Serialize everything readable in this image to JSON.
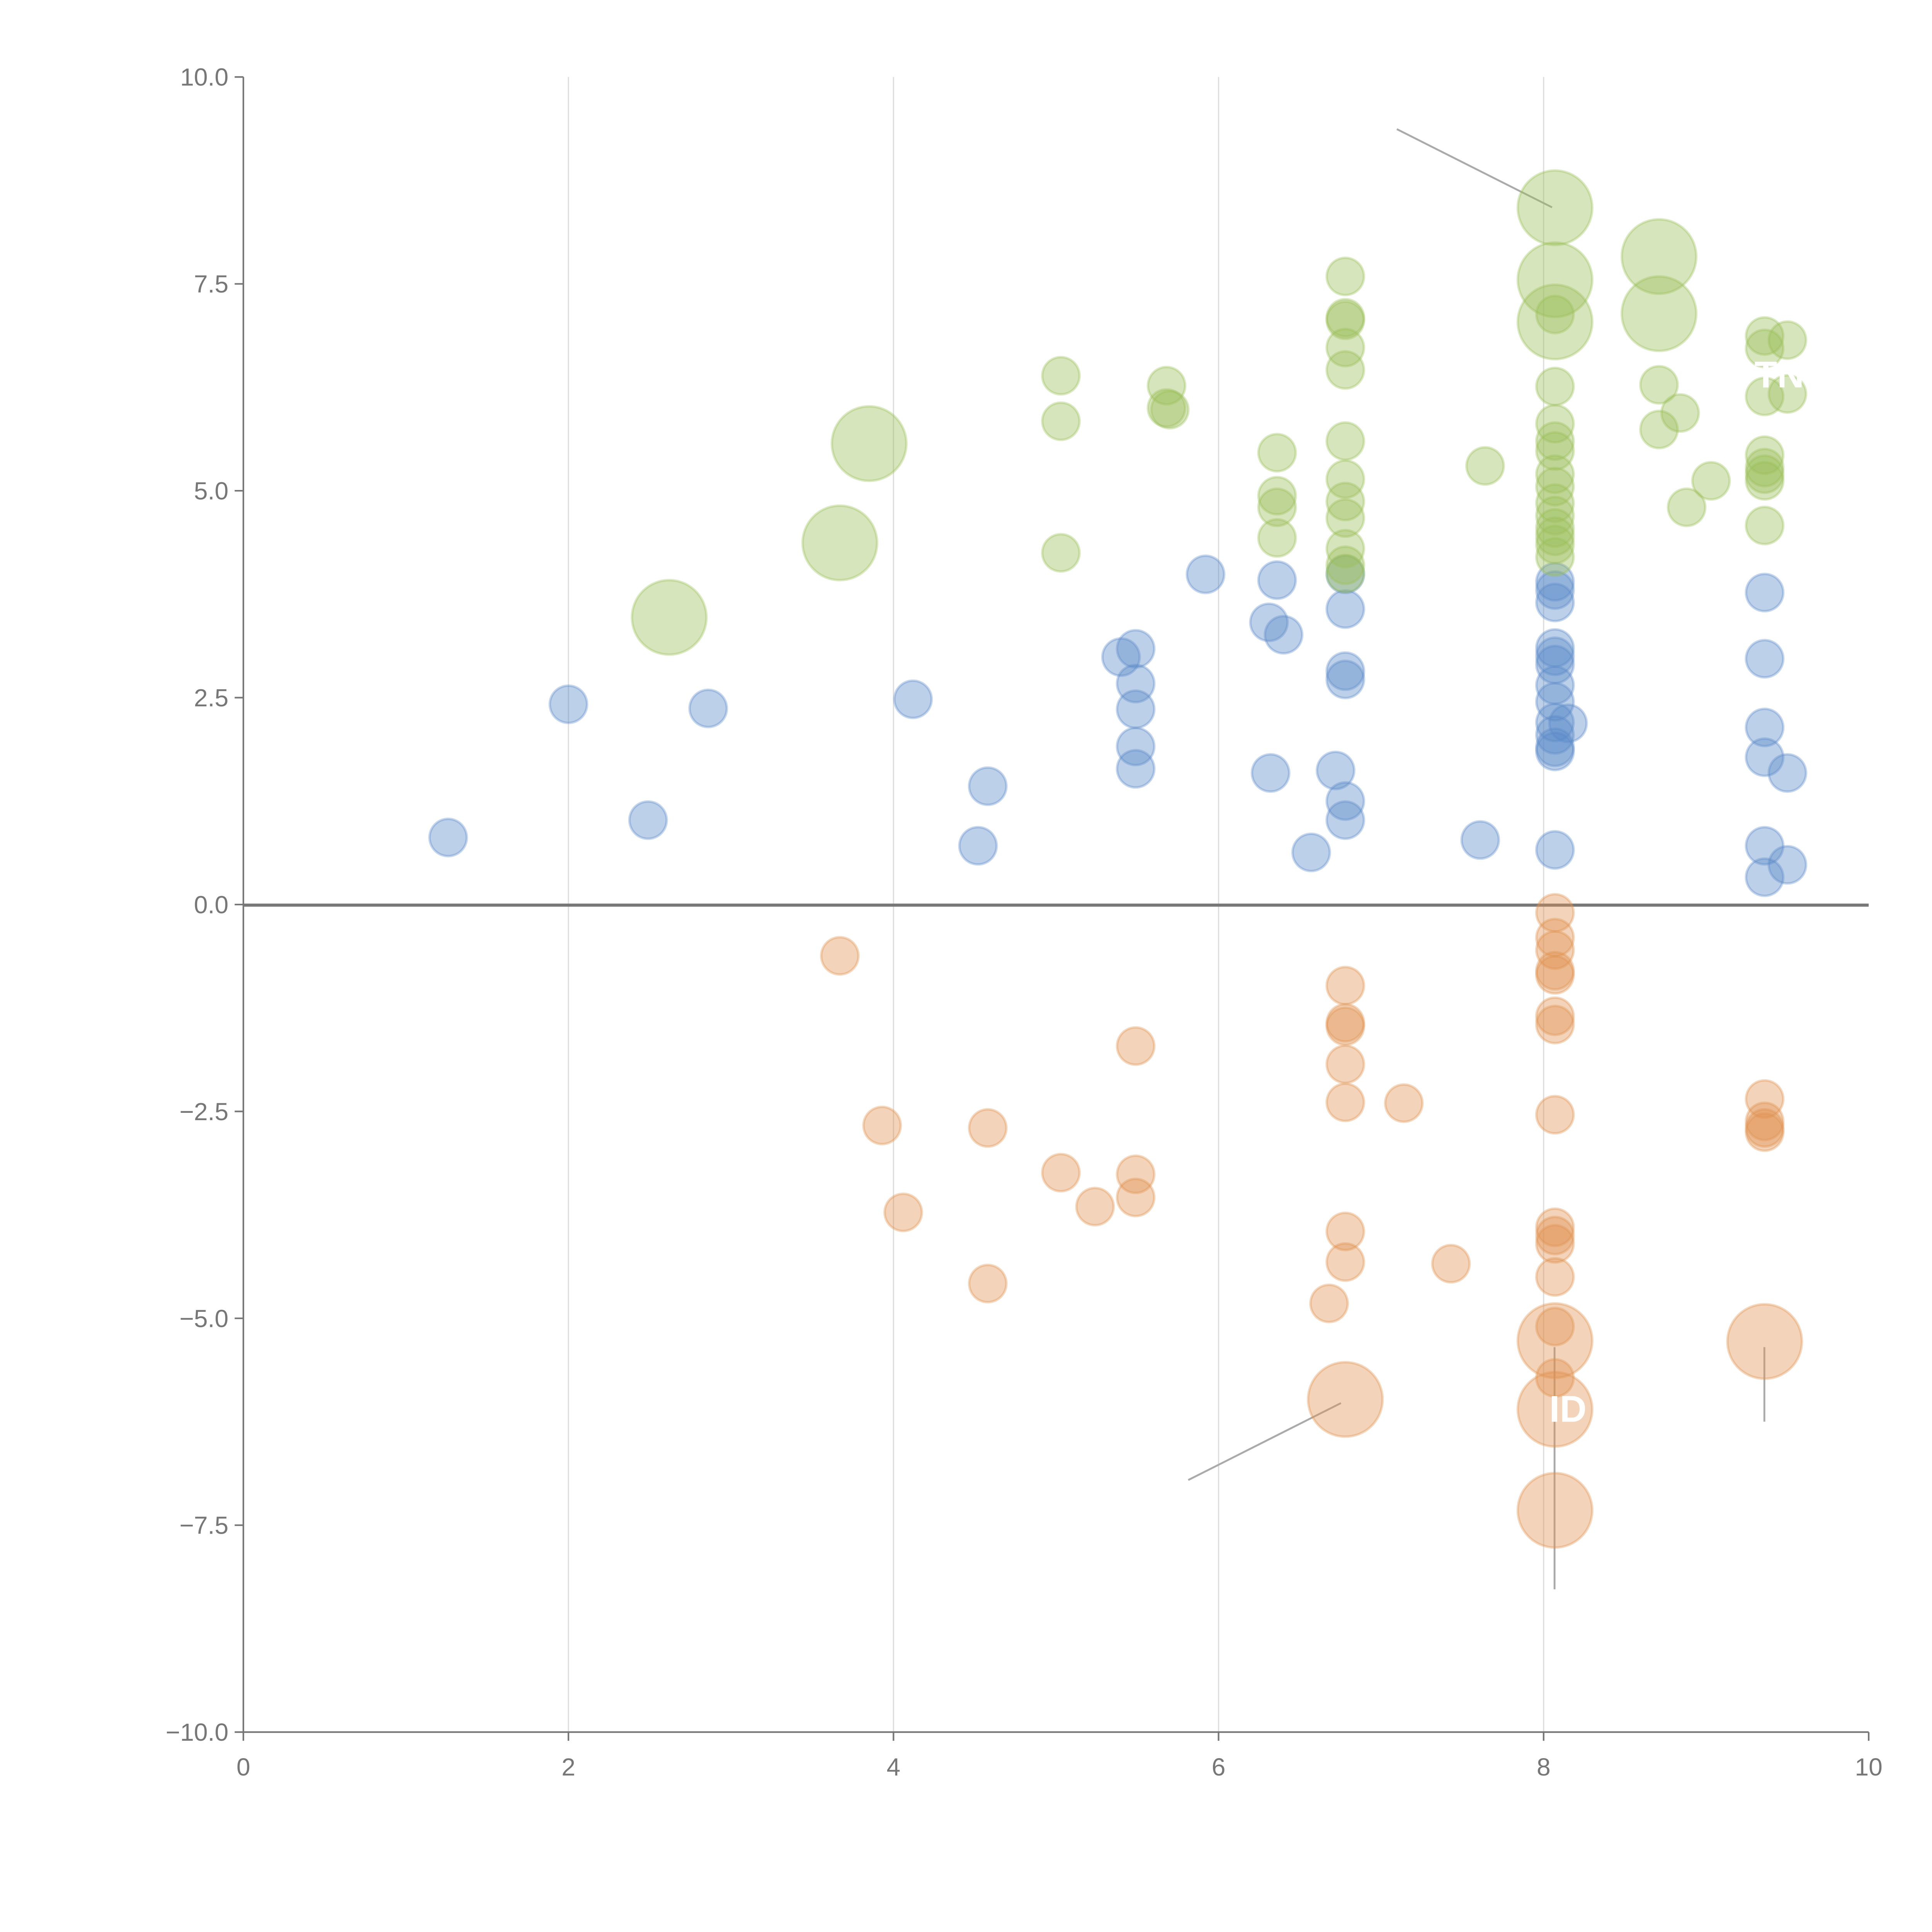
{
  "chart_data": {
    "type": "scatter",
    "title": "",
    "xlabel": "",
    "ylabel": "",
    "xlim": [
      0,
      10
    ],
    "ylim": [
      -10,
      10
    ],
    "xticks": [
      "0",
      "2",
      "4",
      "6",
      "8",
      "10"
    ],
    "yticks": [
      "10.0",
      "7.5",
      "5.0",
      "2.5",
      "0.0",
      "−2.5",
      "−5.0",
      "−7.5",
      "−10.0"
    ],
    "grid": "vertical",
    "series": [
      {
        "name": "blue",
        "color": "#5b8ac9",
        "points": [
          [
            1.26,
            0.81,
            1
          ],
          [
            2.0,
            2.42,
            1
          ],
          [
            2.49,
            1.02,
            1
          ],
          [
            2.86,
            2.37,
            1
          ],
          [
            4.12,
            2.48,
            1
          ],
          [
            4.52,
            0.71,
            1
          ],
          [
            4.58,
            1.43,
            1
          ],
          [
            5.4,
            2.99,
            1
          ],
          [
            5.49,
            3.09,
            1
          ],
          [
            5.49,
            2.67,
            1
          ],
          [
            5.49,
            2.36,
            1
          ],
          [
            5.49,
            1.91,
            1
          ],
          [
            5.49,
            1.64,
            1
          ],
          [
            5.92,
            3.99,
            1
          ],
          [
            6.31,
            3.41,
            1
          ],
          [
            6.36,
            3.92,
            1
          ],
          [
            6.4,
            3.26,
            1
          ],
          [
            6.32,
            1.59,
            1
          ],
          [
            6.57,
            0.63,
            1
          ],
          [
            6.72,
            1.62,
            1
          ],
          [
            6.78,
            1.25,
            1
          ],
          [
            6.78,
            1.02,
            1
          ],
          [
            6.78,
            3.99,
            1
          ],
          [
            6.78,
            3.57,
            1
          ],
          [
            6.78,
            2.82,
            1
          ],
          [
            6.78,
            2.72,
            1
          ],
          [
            7.61,
            0.78,
            1
          ],
          [
            8.07,
            0.66,
            1
          ],
          [
            8.07,
            3.9,
            1
          ],
          [
            8.07,
            3.8,
            1
          ],
          [
            8.07,
            3.65,
            1
          ],
          [
            8.07,
            3.1,
            1
          ],
          [
            8.07,
            3.0,
            1
          ],
          [
            8.07,
            2.9,
            1
          ],
          [
            8.07,
            2.65,
            1
          ],
          [
            8.07,
            2.45,
            1
          ],
          [
            8.07,
            2.2,
            1
          ],
          [
            8.07,
            2.05,
            1
          ],
          [
            8.07,
            1.9,
            1
          ],
          [
            8.07,
            1.85,
            1
          ],
          [
            8.15,
            2.19,
            1
          ],
          [
            9.36,
            3.77,
            1
          ],
          [
            9.36,
            2.97,
            1
          ],
          [
            9.36,
            2.14,
            1
          ],
          [
            9.36,
            1.78,
            1
          ],
          [
            9.36,
            0.71,
            1
          ],
          [
            9.36,
            0.33,
            1
          ],
          [
            9.5,
            1.59,
            1
          ],
          [
            9.5,
            0.48,
            1
          ]
        ]
      },
      {
        "name": "green",
        "color": "#9bbf5a",
        "points": [
          [
            2.62,
            3.47,
            4
          ],
          [
            3.67,
            4.37,
            4
          ],
          [
            3.85,
            5.57,
            4
          ],
          [
            5.03,
            6.39,
            1
          ],
          [
            5.03,
            5.84,
            1
          ],
          [
            5.03,
            4.25,
            1
          ],
          [
            5.68,
            6.27,
            1
          ],
          [
            5.68,
            6.0,
            1
          ],
          [
            5.7,
            5.98,
            1
          ],
          [
            6.36,
            5.46,
            1
          ],
          [
            6.36,
            4.94,
            1
          ],
          [
            6.36,
            4.8,
            1
          ],
          [
            6.36,
            4.43,
            1
          ],
          [
            6.78,
            7.59,
            1
          ],
          [
            6.78,
            7.09,
            1
          ],
          [
            6.78,
            7.06,
            1
          ],
          [
            6.78,
            6.73,
            1
          ],
          [
            6.78,
            6.46,
            1
          ],
          [
            6.78,
            5.6,
            1
          ],
          [
            6.78,
            5.14,
            1
          ],
          [
            6.78,
            4.87,
            1
          ],
          [
            6.78,
            4.67,
            1
          ],
          [
            6.78,
            4.3,
            1
          ],
          [
            6.78,
            4.1,
            1
          ],
          [
            6.78,
            4.0,
            1
          ],
          [
            7.64,
            5.3,
            1
          ],
          [
            8.07,
            8.42,
            4
          ],
          [
            8.07,
            7.55,
            4
          ],
          [
            8.07,
            7.04,
            4
          ],
          [
            8.07,
            7.13,
            1
          ],
          [
            8.07,
            6.26,
            1
          ],
          [
            8.07,
            5.81,
            1
          ],
          [
            8.07,
            5.6,
            1
          ],
          [
            8.07,
            5.48,
            1
          ],
          [
            8.07,
            5.2,
            1
          ],
          [
            8.07,
            5.05,
            1
          ],
          [
            8.07,
            4.85,
            1
          ],
          [
            8.07,
            4.7,
            1
          ],
          [
            8.07,
            4.55,
            1
          ],
          [
            8.07,
            4.45,
            1
          ],
          [
            8.07,
            4.35,
            1
          ],
          [
            8.07,
            4.2,
            1
          ],
          [
            8.71,
            7.83,
            4
          ],
          [
            8.71,
            7.14,
            4
          ],
          [
            8.71,
            6.28,
            1
          ],
          [
            8.71,
            5.74,
            1
          ],
          [
            8.84,
            5.94,
            1
          ],
          [
            8.88,
            4.8,
            1
          ],
          [
            9.03,
            5.12,
            1
          ],
          [
            9.36,
            6.87,
            1
          ],
          [
            9.36,
            6.72,
            1
          ],
          [
            9.36,
            6.14,
            1
          ],
          [
            9.36,
            5.43,
            1
          ],
          [
            9.36,
            5.28,
            1
          ],
          [
            9.36,
            5.2,
            1
          ],
          [
            9.36,
            5.12,
            1
          ],
          [
            9.36,
            4.58,
            1
          ],
          [
            9.5,
            6.82,
            1
          ],
          [
            9.5,
            6.17,
            1
          ]
        ]
      },
      {
        "name": "orange",
        "color": "#e0914f",
        "points": [
          [
            3.67,
            -0.62,
            1
          ],
          [
            3.93,
            -2.67,
            1
          ],
          [
            4.06,
            -3.72,
            1
          ],
          [
            4.58,
            -2.7,
            1
          ],
          [
            4.58,
            -4.58,
            1
          ],
          [
            5.03,
            -3.24,
            1
          ],
          [
            5.24,
            -3.65,
            1
          ],
          [
            5.49,
            -1.71,
            1
          ],
          [
            5.49,
            -3.26,
            1
          ],
          [
            5.49,
            -3.54,
            1
          ],
          [
            6.78,
            -0.98,
            1
          ],
          [
            6.78,
            -1.43,
            1
          ],
          [
            6.78,
            -1.47,
            1
          ],
          [
            6.78,
            -1.93,
            1
          ],
          [
            6.78,
            -2.39,
            1
          ],
          [
            6.78,
            -3.95,
            1
          ],
          [
            6.78,
            -4.32,
            1
          ],
          [
            6.68,
            -4.82,
            1
          ],
          [
            6.78,
            -5.98,
            4
          ],
          [
            7.14,
            -2.4,
            1
          ],
          [
            7.43,
            -4.34,
            1
          ],
          [
            8.07,
            -0.1,
            1
          ],
          [
            8.07,
            -0.4,
            1
          ],
          [
            8.07,
            -0.55,
            1
          ],
          [
            8.07,
            -0.8,
            1
          ],
          [
            8.07,
            -0.85,
            1
          ],
          [
            8.07,
            -1.35,
            1
          ],
          [
            8.07,
            -1.45,
            1
          ],
          [
            8.07,
            -2.54,
            1
          ],
          [
            8.07,
            -3.9,
            1
          ],
          [
            8.07,
            -4.0,
            1
          ],
          [
            8.07,
            -4.1,
            1
          ],
          [
            8.07,
            -4.5,
            1
          ],
          [
            8.07,
            -5.1,
            1
          ],
          [
            8.07,
            -5.72,
            1
          ],
          [
            8.07,
            -5.27,
            4
          ],
          [
            8.07,
            -6.1,
            4
          ],
          [
            8.07,
            -7.32,
            4
          ],
          [
            9.36,
            -2.35,
            1
          ],
          [
            9.36,
            -2.62,
            1
          ],
          [
            9.36,
            -2.7,
            1
          ],
          [
            9.36,
            -2.75,
            1
          ],
          [
            9.36,
            -5.28,
            4
          ]
        ]
      }
    ],
    "annotations": [
      {
        "text": "TN",
        "x": 9.45,
        "y": 6.4
      },
      {
        "text": "ID",
        "x": 8.15,
        "y": -6.1
      }
    ]
  }
}
